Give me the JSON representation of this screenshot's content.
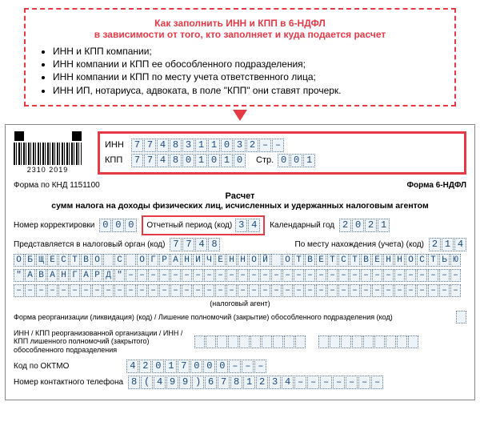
{
  "tip": {
    "title": "Как заполнить ИНН и КПП в 6-НДФЛ",
    "sub": "в зависимости от того, кто заполняет и куда подается расчет",
    "items": [
      "ИНН и КПП компании;",
      "ИНН компании и КПП ее обособленного подразделения;",
      "ИНН компании и КПП по месту учета ответственного лица;",
      "ИНН ИП, нотариуса, адвоката, в поле \"КПП\" они ставят прочерк."
    ]
  },
  "form": {
    "barcode_num": "2310  2019",
    "inn_label": "ИНН",
    "inn": [
      "7",
      "7",
      "4",
      "8",
      "3",
      "1",
      "1",
      "0",
      "3",
      "2",
      "–",
      "–"
    ],
    "kpp_label": "КПП",
    "kpp": [
      "7",
      "7",
      "4",
      "8",
      "0",
      "1",
      "0",
      "1",
      "0"
    ],
    "str_label": "Стр.",
    "str": [
      "0",
      "0",
      "1"
    ],
    "form_code": "Форма по КНД 1151100",
    "form_name": "Форма 6-НДФЛ",
    "title": "Расчет",
    "subtitle": "сумм налога на доходы физических лиц, исчисленных и удержанных налоговым агентом",
    "corr_lbl": "Номер корректировки",
    "corr": [
      "0",
      "0",
      "0"
    ],
    "period_lbl": "Отчетный период (код)",
    "period": [
      "3",
      "4"
    ],
    "year_lbl": "Календарный год",
    "year": [
      "2",
      "0",
      "2",
      "1"
    ],
    "tax_org_lbl": "Представляется в налоговый орган (код)",
    "tax_org": [
      "7",
      "7",
      "4",
      "8"
    ],
    "place_lbl": "По месту нахождения (учета) (код)",
    "place": [
      "2",
      "1",
      "4"
    ],
    "org_line1": [
      "О",
      "Б",
      "Щ",
      "Е",
      "С",
      "Т",
      "В",
      "О",
      "",
      "С",
      "",
      "О",
      "Г",
      "Р",
      "А",
      "Н",
      "И",
      "Ч",
      "Е",
      "Н",
      "Н",
      "О",
      "Й",
      "",
      "О",
      "Т",
      "В",
      "Е",
      "Т",
      "С",
      "Т",
      "В",
      "Е",
      "Н",
      "Н",
      "О",
      "С",
      "Т",
      "Ь",
      "Ю"
    ],
    "org_line2": [
      "\"",
      "А",
      "В",
      "А",
      "Н",
      "Г",
      "А",
      "Р",
      "Д",
      "\"",
      "–",
      "–",
      "–",
      "–",
      "–",
      "–",
      "–",
      "–",
      "–",
      "–",
      "–",
      "–",
      "–",
      "–",
      "–",
      "–",
      "–",
      "–",
      "–",
      "–",
      "–",
      "–",
      "–",
      "–",
      "–",
      "–",
      "–",
      "–",
      "–",
      "–"
    ],
    "org_line3_dash_count": 40,
    "tax_agent": "(налоговый агент)",
    "reorg_lbl": "Форма реорганизации (ликвидация) (код) / Лишение полномочий (закрытие) обособленного подразделения (код)",
    "reorg_inn_lbl": "ИНН / КПП реорганизованной организации / ИНН / КПП лишенного полномочий (закрытого) обособленного подразделения",
    "oktmo_lbl": "Код по ОКТМО",
    "oktmo": [
      "4",
      "2",
      "0",
      "1",
      "7",
      "0",
      "0",
      "0",
      "–",
      "–",
      "–"
    ],
    "phone_lbl": "Номер контактного телефона",
    "phone": [
      "8",
      "(",
      "4",
      "9",
      "9",
      ")",
      "6",
      "7",
      "8",
      "1",
      "2",
      "3",
      "4",
      "–",
      "–",
      "–",
      "–",
      "–",
      "–",
      "–"
    ]
  },
  "colors": {
    "accent": "#e63946",
    "cell_bg": "#eef3f8",
    "cell_border": "#5a7a9a",
    "cell_text": "#1a4a7a"
  }
}
